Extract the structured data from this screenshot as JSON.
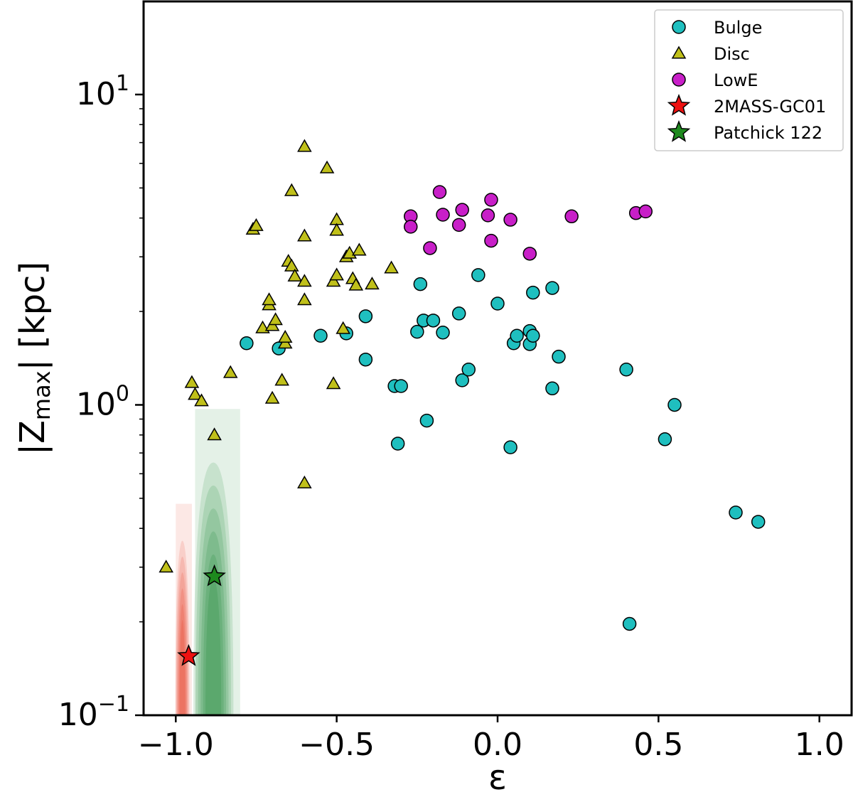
{
  "chart_data": {
    "type": "scatter",
    "xlabel": "ε",
    "ylabel_main": "|Z",
    "ylabel_sub": "max",
    "ylabel_tail": "| [kpc]",
    "xlim": [
      -1.1,
      1.1
    ],
    "ylim_log10": [
      -1.0,
      1.3
    ],
    "yscale": "log",
    "x_ticks": [
      {
        "value": -1.0,
        "label": "−1.0"
      },
      {
        "value": -0.5,
        "label": "−0.5"
      },
      {
        "value": 0.0,
        "label": "0.0"
      },
      {
        "value": 0.5,
        "label": "0.5"
      },
      {
        "value": 1.0,
        "label": "1.0"
      }
    ],
    "y_ticks": [
      {
        "value": 0.1,
        "base": "10",
        "exp": "−1"
      },
      {
        "value": 1,
        "base": "10",
        "exp": "0"
      },
      {
        "value": 10,
        "base": "10",
        "exp": "1"
      }
    ],
    "legend_position": "top-right",
    "density_regions": [
      {
        "name": "2MASS-GC01 orbit density",
        "color": "#e8402a",
        "x_range": [
          -1.0,
          -0.95
        ],
        "y_range": [
          0.1,
          0.48
        ]
      },
      {
        "name": "Patchick 122 orbit density",
        "color": "#1f8a3a",
        "x_range": [
          -0.94,
          -0.8
        ],
        "y_range": [
          0.1,
          0.97
        ]
      }
    ],
    "series": [
      {
        "name": "Bulge",
        "marker": "circle",
        "color": "#1fbfbf",
        "points": [
          [
            -0.78,
            1.58
          ],
          [
            -0.68,
            1.52
          ],
          [
            -0.55,
            1.67
          ],
          [
            -0.47,
            1.7
          ],
          [
            -0.41,
            1.93
          ],
          [
            -0.41,
            1.4
          ],
          [
            -0.32,
            1.15
          ],
          [
            -0.3,
            1.15
          ],
          [
            -0.31,
            0.75
          ],
          [
            -0.24,
            2.45
          ],
          [
            -0.25,
            1.72
          ],
          [
            -0.23,
            1.87
          ],
          [
            -0.2,
            1.87
          ],
          [
            -0.17,
            1.71
          ],
          [
            -0.22,
            0.89
          ],
          [
            -0.12,
            1.97
          ],
          [
            -0.11,
            1.2
          ],
          [
            -0.09,
            1.3
          ],
          [
            -0.06,
            2.62
          ],
          [
            0.0,
            2.12
          ],
          [
            0.04,
            0.73
          ],
          [
            0.05,
            1.58
          ],
          [
            0.06,
            1.67
          ],
          [
            0.1,
            1.73
          ],
          [
            0.1,
            1.57
          ],
          [
            0.11,
            1.67
          ],
          [
            0.11,
            2.3
          ],
          [
            0.17,
            2.38
          ],
          [
            0.17,
            1.13
          ],
          [
            0.19,
            1.43
          ],
          [
            0.4,
            1.3
          ],
          [
            0.41,
            0.197
          ],
          [
            0.52,
            0.775
          ],
          [
            0.55,
            1.0
          ],
          [
            0.74,
            0.45
          ],
          [
            0.81,
            0.42
          ]
        ]
      },
      {
        "name": "Disc",
        "marker": "triangle",
        "color": "#c0c01a",
        "points": [
          [
            -1.03,
            0.3
          ],
          [
            -0.95,
            1.18
          ],
          [
            -0.94,
            1.08
          ],
          [
            -0.92,
            1.03
          ],
          [
            -0.88,
            0.8
          ],
          [
            -0.83,
            1.27
          ],
          [
            -0.76,
            3.68
          ],
          [
            -0.75,
            3.78
          ],
          [
            -0.73,
            1.77
          ],
          [
            -0.71,
            2.1
          ],
          [
            -0.71,
            2.18
          ],
          [
            -0.7,
            1.8
          ],
          [
            -0.7,
            1.05
          ],
          [
            -0.69,
            1.88
          ],
          [
            -0.67,
            1.2
          ],
          [
            -0.66,
            1.58
          ],
          [
            -0.66,
            1.65
          ],
          [
            -0.65,
            2.9
          ],
          [
            -0.64,
            2.8
          ],
          [
            -0.64,
            4.9
          ],
          [
            -0.63,
            2.6
          ],
          [
            -0.6,
            6.8
          ],
          [
            -0.6,
            3.5
          ],
          [
            -0.6,
            2.5
          ],
          [
            -0.6,
            2.18
          ],
          [
            -0.6,
            0.56
          ],
          [
            -0.53,
            5.8
          ],
          [
            -0.51,
            1.17
          ],
          [
            -0.51,
            2.5
          ],
          [
            -0.5,
            2.62
          ],
          [
            -0.5,
            3.95
          ],
          [
            -0.5,
            3.65
          ],
          [
            -0.48,
            1.76
          ],
          [
            -0.47,
            3.0
          ],
          [
            -0.46,
            3.08
          ],
          [
            -0.45,
            2.55
          ],
          [
            -0.44,
            2.43
          ],
          [
            -0.43,
            3.15
          ],
          [
            -0.39,
            2.45
          ],
          [
            -0.33,
            2.76
          ]
        ]
      },
      {
        "name": "LowE",
        "marker": "circle",
        "color": "#c81fc8",
        "points": [
          [
            -0.27,
            4.05
          ],
          [
            -0.27,
            3.75
          ],
          [
            -0.21,
            3.2
          ],
          [
            -0.18,
            4.85
          ],
          [
            -0.17,
            4.1
          ],
          [
            -0.12,
            3.8
          ],
          [
            -0.11,
            4.25
          ],
          [
            -0.03,
            4.08
          ],
          [
            -0.02,
            3.38
          ],
          [
            -0.02,
            4.58
          ],
          [
            0.04,
            3.95
          ],
          [
            0.1,
            3.07
          ],
          [
            0.23,
            4.05
          ],
          [
            0.43,
            4.15
          ],
          [
            0.46,
            4.2
          ]
        ]
      },
      {
        "name": "2MASS-GC01",
        "marker": "star",
        "color": "#ee1111",
        "points": [
          [
            -0.96,
            0.155
          ]
        ]
      },
      {
        "name": "Patchick 122",
        "marker": "star",
        "color": "#1e8a1e",
        "points": [
          [
            -0.88,
            0.28
          ]
        ]
      }
    ]
  }
}
